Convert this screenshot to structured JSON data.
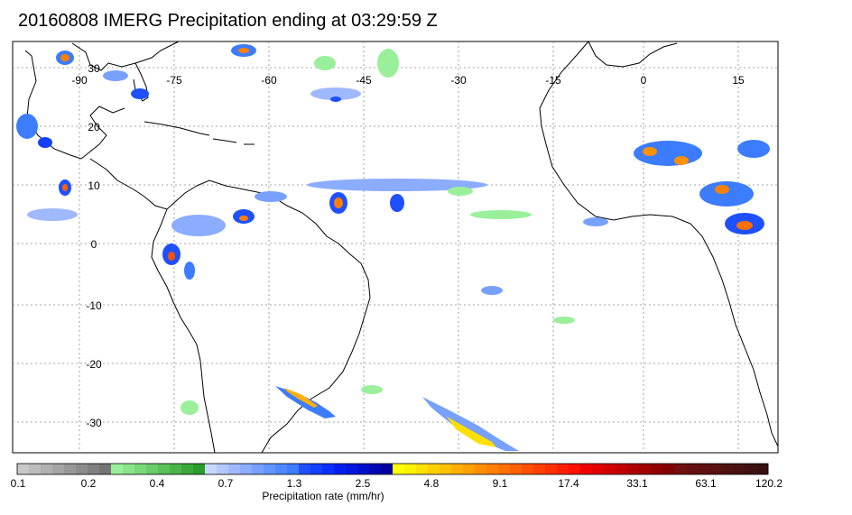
{
  "title": "20160808 IMERG Precipitation ending at 03:29:59 Z",
  "map": {
    "lon_labels": [
      "-90",
      "-75",
      "-60",
      "-45",
      "-30",
      "-15",
      "0",
      "15"
    ],
    "lat_labels": [
      "30",
      "20",
      "10",
      "0",
      "-10",
      "-20",
      "-30"
    ]
  },
  "colorbar": {
    "title": "Precipitation rate (mm/hr)",
    "tick_labels": [
      "0.1",
      "0.2",
      "0.4",
      "0.7",
      "1.3",
      "2.5",
      "4.8",
      "9.1",
      "17.4",
      "33.1",
      "63.1",
      "120.2"
    ],
    "colors": [
      "#c8c8c8",
      "#bcbcbc",
      "#b0b0b0",
      "#a4a4a4",
      "#989898",
      "#8c8c8c",
      "#808080",
      "#747474",
      "#9af09a",
      "#8ae48a",
      "#7ad87a",
      "#6acc6a",
      "#5ac05a",
      "#4ab44a",
      "#3aa83a",
      "#2a9c2a",
      "#c8d8ff",
      "#b4c8ff",
      "#a0b8ff",
      "#8cacff",
      "#78a0ff",
      "#6494ff",
      "#5088ff",
      "#3c7cff",
      "#1e50ff",
      "#1440ff",
      "#0a30ff",
      "#0020f0",
      "#0018dc",
      "#0010c8",
      "#0008b4",
      "#0000a0",
      "#ffff00",
      "#fff000",
      "#ffe000",
      "#ffd000",
      "#ffc000",
      "#ffb000",
      "#ffa000",
      "#ff9000",
      "#ff8000",
      "#ff7000",
      "#ff6000",
      "#ff5000",
      "#ff4000",
      "#ff3000",
      "#ff2000",
      "#ff1000",
      "#f00000",
      "#e00000",
      "#d00000",
      "#c00000",
      "#b00000",
      "#a00000",
      "#900000",
      "#800000",
      "#701010",
      "#681010",
      "#601010",
      "#581010",
      "#501010",
      "#481010",
      "#401010",
      "#381010"
    ]
  }
}
